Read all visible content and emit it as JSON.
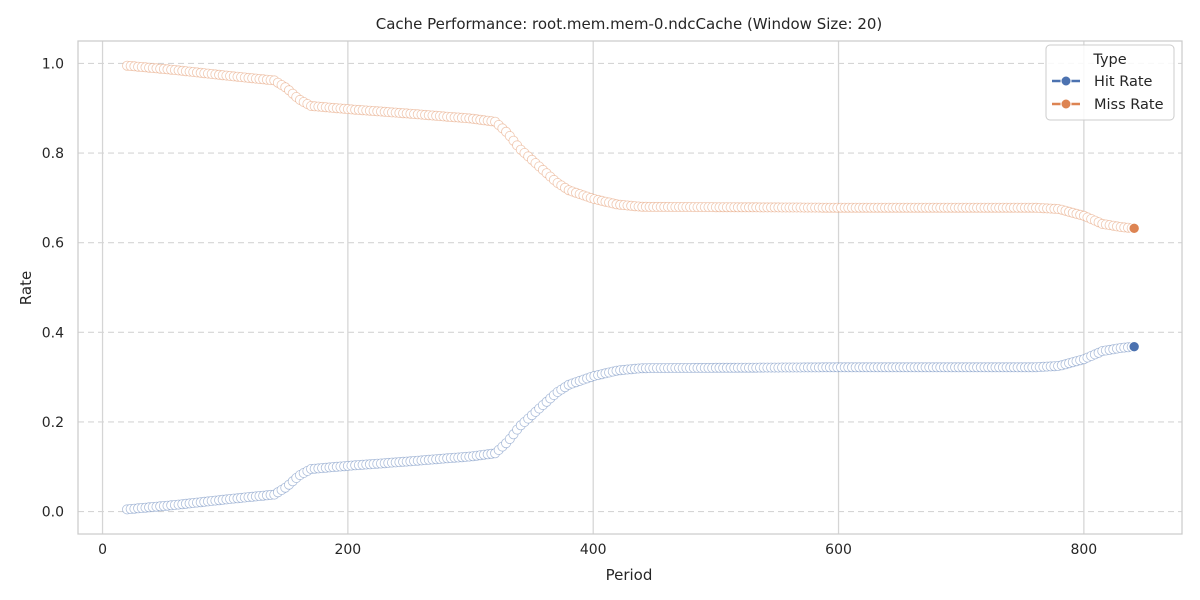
{
  "chart_data": {
    "type": "line",
    "title": "Cache Performance: root.mem.mem-0.ndcCache (Window Size: 20)",
    "xlabel": "Period",
    "ylabel": "Rate",
    "xlim": [
      -20,
      880
    ],
    "ylim": [
      -0.05,
      1.05
    ],
    "xticks": [
      0,
      200,
      400,
      600,
      800
    ],
    "xtick_labels": [
      "0",
      "200",
      "400",
      "600",
      "800"
    ],
    "yticks": [
      0.0,
      0.2,
      0.4,
      0.6,
      0.8,
      1.0
    ],
    "ytick_labels": [
      "0.0",
      "0.2",
      "0.4",
      "0.6",
      "0.8",
      "1.0"
    ],
    "grid": true,
    "legend": {
      "title": "Type",
      "position": "top-right"
    },
    "series": [
      {
        "name": "Hit Rate",
        "color": "#4c72b0",
        "points": [
          [
            20,
            0.005
          ],
          [
            60,
            0.015
          ],
          [
            100,
            0.027
          ],
          [
            140,
            0.038
          ],
          [
            150,
            0.055
          ],
          [
            160,
            0.08
          ],
          [
            170,
            0.095
          ],
          [
            200,
            0.102
          ],
          [
            250,
            0.112
          ],
          [
            300,
            0.123
          ],
          [
            320,
            0.13
          ],
          [
            330,
            0.155
          ],
          [
            340,
            0.19
          ],
          [
            350,
            0.215
          ],
          [
            360,
            0.24
          ],
          [
            370,
            0.265
          ],
          [
            380,
            0.283
          ],
          [
            400,
            0.302
          ],
          [
            420,
            0.315
          ],
          [
            440,
            0.32
          ],
          [
            600,
            0.322
          ],
          [
            700,
            0.322
          ],
          [
            760,
            0.322
          ],
          [
            780,
            0.325
          ],
          [
            800,
            0.34
          ],
          [
            815,
            0.358
          ],
          [
            830,
            0.365
          ],
          [
            841,
            0.368
          ]
        ]
      },
      {
        "name": "Miss Rate",
        "color": "#dd8452",
        "points": [
          [
            20,
            0.995
          ],
          [
            60,
            0.985
          ],
          [
            100,
            0.973
          ],
          [
            140,
            0.962
          ],
          [
            150,
            0.945
          ],
          [
            160,
            0.92
          ],
          [
            170,
            0.905
          ],
          [
            200,
            0.898
          ],
          [
            250,
            0.888
          ],
          [
            300,
            0.877
          ],
          [
            320,
            0.87
          ],
          [
            330,
            0.845
          ],
          [
            340,
            0.81
          ],
          [
            350,
            0.785
          ],
          [
            360,
            0.76
          ],
          [
            370,
            0.735
          ],
          [
            380,
            0.717
          ],
          [
            400,
            0.698
          ],
          [
            420,
            0.685
          ],
          [
            440,
            0.68
          ],
          [
            600,
            0.678
          ],
          [
            700,
            0.678
          ],
          [
            760,
            0.678
          ],
          [
            780,
            0.675
          ],
          [
            800,
            0.66
          ],
          [
            815,
            0.642
          ],
          [
            830,
            0.635
          ],
          [
            841,
            0.632
          ]
        ]
      }
    ]
  }
}
